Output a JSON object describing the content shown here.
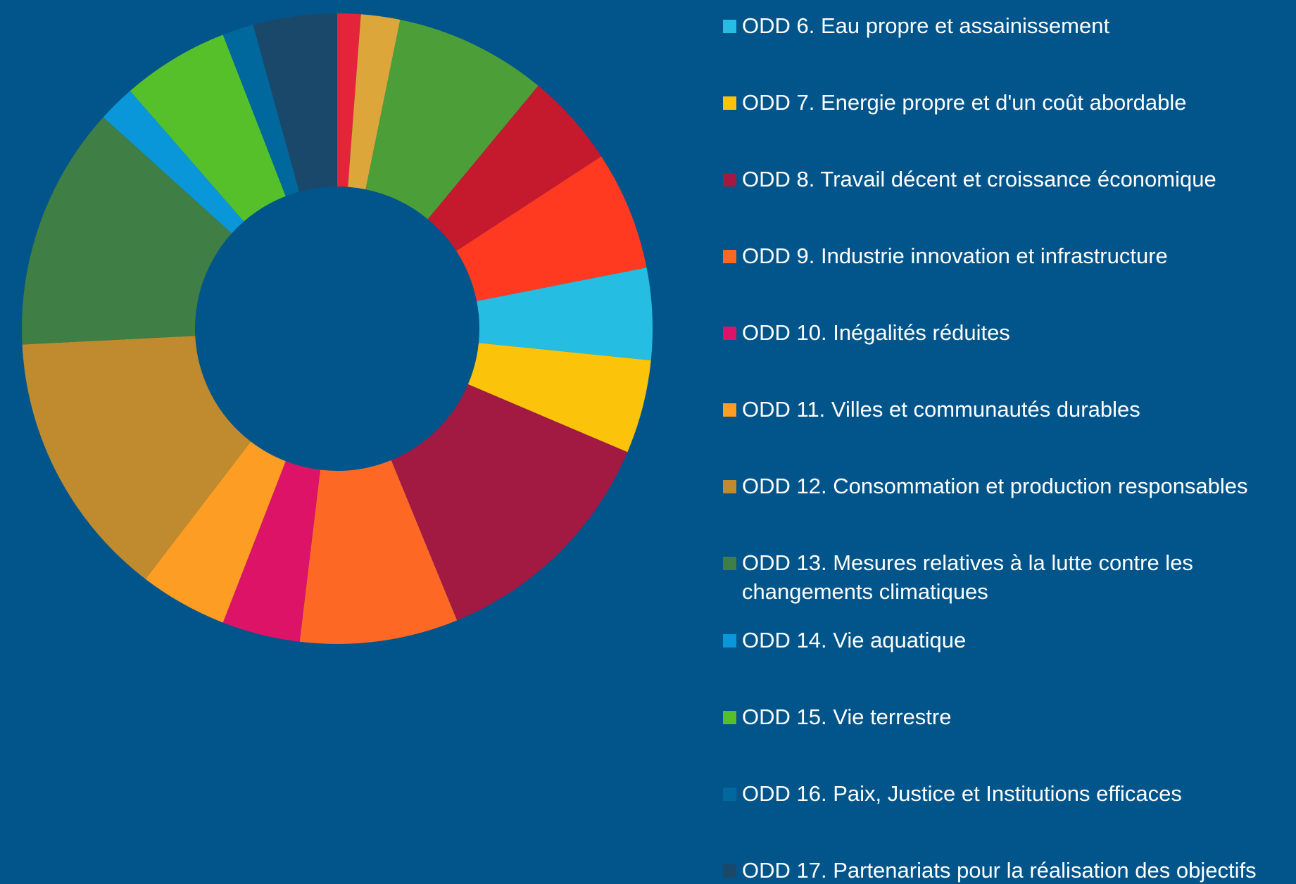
{
  "chart_data": {
    "type": "donut",
    "categories": [
      null,
      null,
      null,
      null,
      null,
      "ODD 6. Eau propre et assainissement",
      "ODD 7. Energie propre et d'un coût abordable",
      "ODD 8. Travail décent et croissance économique",
      "ODD 9. Industrie innovation et infrastructure",
      "ODD 10. Inégalités réduites",
      "ODD 11. Villes et communautés durables",
      "ODD 12. Consommation et production responsables",
      "ODD 13. Mesures relatives à la lutte contre les changements climatiques",
      "ODD 14. Vie aquatique",
      "ODD 15. Vie terrestre",
      "ODD 16. Paix, Justice et Institutions efficaces",
      "ODD 17. Partenariats pour la réalisation des objectifs"
    ],
    "values": [
      1.2,
      2.0,
      7.8,
      4.8,
      6.1,
      4.7,
      4.8,
      12.4,
      8.1,
      4.0,
      4.5,
      13.8,
      12.5,
      1.9,
      5.5,
      1.6,
      4.3
    ],
    "colors": [
      "#e5243b",
      "#dda63a",
      "#4c9f38",
      "#c5192d",
      "#ff3a21",
      "#26bde2",
      "#fcc30b",
      "#a21942",
      "#fd6925",
      "#dd1367",
      "#fd9d24",
      "#bf8b2e",
      "#3f7e44",
      "#0a97d9",
      "#56c02b",
      "#00689d",
      "#19486a"
    ]
  }
}
